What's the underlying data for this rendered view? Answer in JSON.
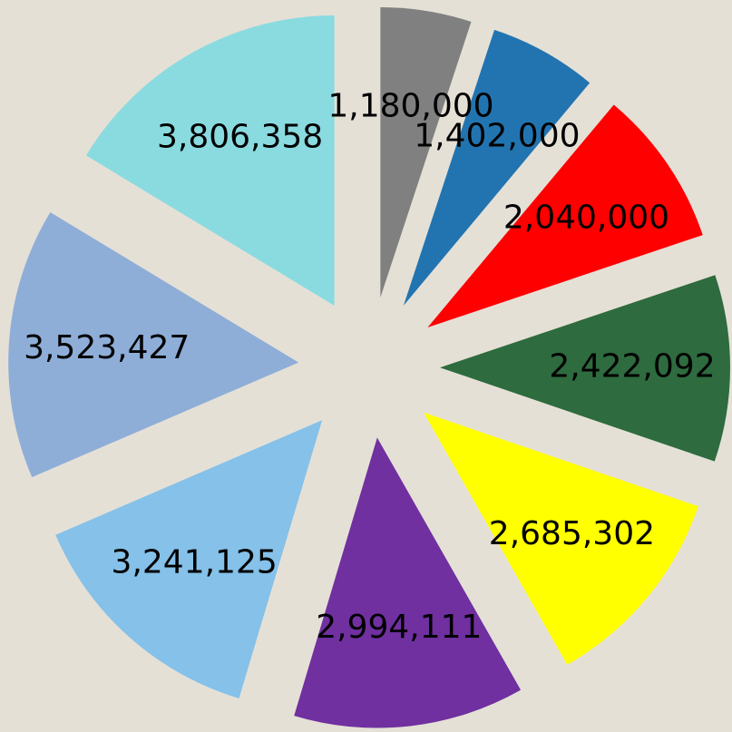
{
  "chart_data": {
    "type": "pie",
    "values": [
      1180000,
      1402000,
      2040000,
      2422092,
      2685302,
      2994111,
      3241125,
      3523427,
      3806358
    ],
    "value_labels": [
      "1,180,000",
      "1,402,000",
      "2,040,000",
      "2,422,092",
      "2,685,302",
      "2,994,111",
      "3,241,125",
      "3,523,427",
      "3,806,358"
    ],
    "colors": [
      "#808080",
      "#2274b0",
      "#ff0000",
      "#2e6b3e",
      "#ffff00",
      "#7030a0",
      "#85c1e9",
      "#8eaed8",
      "#8adbe0"
    ]
  }
}
